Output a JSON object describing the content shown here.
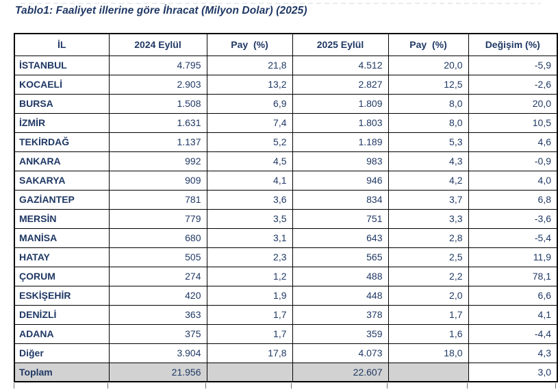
{
  "chart_data": {
    "type": "table",
    "title": "Tablo1: Faaliyet illerine göre İhracat (Milyon Dolar) (2025)",
    "columns": [
      "İL",
      "2024 Eylül",
      "Pay  (%)",
      "2025 Eylül",
      "Pay  (%)",
      "Değişim (%)"
    ],
    "rows": [
      [
        "İSTANBUL",
        "4.795",
        "21,8",
        "4.512",
        "20,0",
        "-5,9"
      ],
      [
        "KOCAELİ",
        "2.903",
        "13,2",
        "2.827",
        "12,5",
        "-2,6"
      ],
      [
        "BURSA",
        "1.508",
        "6,9",
        "1.809",
        "8,0",
        "20,0"
      ],
      [
        "İZMİR",
        "1.631",
        "7,4",
        "1.803",
        "8,0",
        "10,5"
      ],
      [
        "TEKİRDAĞ",
        "1.137",
        "5,2",
        "1.189",
        "5,3",
        "4,6"
      ],
      [
        "ANKARA",
        "992",
        "4,5",
        "983",
        "4,3",
        "-0,9"
      ],
      [
        "SAKARYA",
        "909",
        "4,1",
        "946",
        "4,2",
        "4,0"
      ],
      [
        "GAZİANTEP",
        "781",
        "3,6",
        "834",
        "3,7",
        "6,8"
      ],
      [
        "MERSİN",
        "779",
        "3,5",
        "751",
        "3,3",
        "-3,6"
      ],
      [
        "MANİSA",
        "680",
        "3,1",
        "643",
        "2,8",
        "-5,4"
      ],
      [
        "HATAY",
        "505",
        "2,3",
        "565",
        "2,5",
        "11,9"
      ],
      [
        "ÇORUM",
        "274",
        "1,2",
        "488",
        "2,2",
        "78,1"
      ],
      [
        "ESKİŞEHİR",
        "420",
        "1,9",
        "448",
        "2,0",
        "6,6"
      ],
      [
        "DENİZLİ",
        "363",
        "1,7",
        "378",
        "1,7",
        "4,1"
      ],
      [
        "ADANA",
        "375",
        "1,7",
        "359",
        "1,6",
        "-4,4"
      ],
      [
        "Diğer",
        "3.904",
        "17,8",
        "4.073",
        "18,0",
        "4,3"
      ]
    ],
    "total_row": [
      "Toplam",
      "21.956",
      "",
      "22.607",
      "",
      "3,0"
    ]
  },
  "colors": {
    "text": "#1f3864",
    "border": "#000000",
    "total_row_bg": "#d2d2d2",
    "background": "#ffffff"
  }
}
